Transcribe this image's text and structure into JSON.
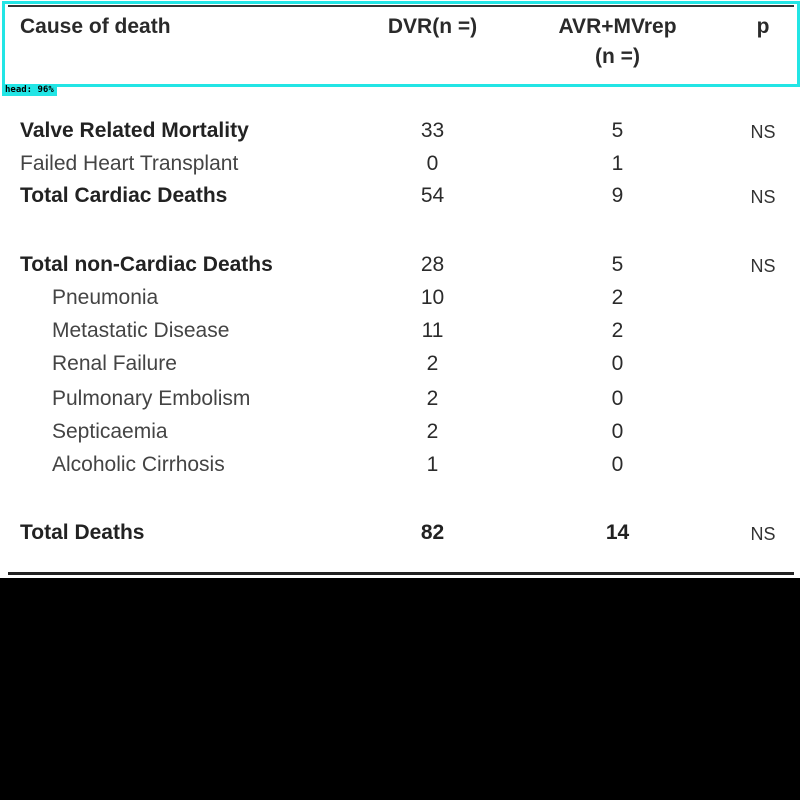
{
  "detection_label": "head: 96%",
  "table": {
    "headers": {
      "cause": "Cause of death",
      "dvr": "DVR(n =)",
      "avr_line1": "AVR+MVrep",
      "avr_line2": "(n =)",
      "p": "p"
    },
    "rows": [
      {
        "cause": "Valve Related Mortality",
        "dvr": "33",
        "avr": "5",
        "p": "NS"
      },
      {
        "cause": "Failed Heart Transplant",
        "dvr": "0",
        "avr": "1",
        "p": ""
      },
      {
        "cause": "Total Cardiac Deaths",
        "dvr": "54",
        "avr": "9",
        "p": "NS"
      },
      {
        "cause": "Total non-Cardiac Deaths",
        "dvr": "28",
        "avr": "5",
        "p": "NS"
      },
      {
        "cause": "Pneumonia",
        "dvr": "10",
        "avr": "2",
        "p": ""
      },
      {
        "cause": "Metastatic Disease",
        "dvr": "11",
        "avr": "2",
        "p": ""
      },
      {
        "cause": "Renal Failure",
        "dvr": "2",
        "avr": "0",
        "p": ""
      },
      {
        "cause": "Pulmonary Embolism",
        "dvr": "2",
        "avr": "0",
        "p": ""
      },
      {
        "cause": "Septicaemia",
        "dvr": "2",
        "avr": "0",
        "p": ""
      },
      {
        "cause": "Alcoholic Cirrhosis",
        "dvr": "1",
        "avr": "0",
        "p": ""
      },
      {
        "cause": "Total Deaths",
        "dvr": "82",
        "avr": "14",
        "p": "NS"
      }
    ]
  },
  "colors": {
    "highlight": "#22e5e5",
    "rule": "#222222",
    "text": "#2b2b2b"
  }
}
